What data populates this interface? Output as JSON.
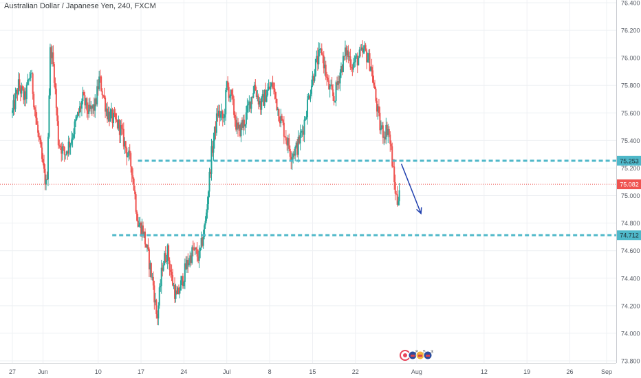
{
  "chart_data": {
    "type": "candlestick",
    "title": "Australian Dollar / Japanese Yen, 240, FXCM",
    "ylim": [
      73.8,
      76.4
    ],
    "y_ticks": [
      "76.400",
      "76.200",
      "76.000",
      "75.800",
      "75.600",
      "75.400",
      "75.200",
      "75.000",
      "74.800",
      "74.600",
      "74.400",
      "74.200",
      "74.000",
      "73.800"
    ],
    "x_ticks": [
      {
        "label": "27",
        "day": 0
      },
      {
        "label": "Jun",
        "day": 5
      },
      {
        "label": "10",
        "day": 14
      },
      {
        "label": "17",
        "day": 21
      },
      {
        "label": "24",
        "day": 28
      },
      {
        "label": "Jul",
        "day": 35
      },
      {
        "label": "8",
        "day": 42
      },
      {
        "label": "15",
        "day": 49
      },
      {
        "label": "22",
        "day": 56
      },
      {
        "label": "Aug",
        "day": 66
      },
      {
        "label": "12",
        "day": 77
      },
      {
        "label": "19",
        "day": 84
      },
      {
        "label": "26",
        "day": 91
      },
      {
        "label": "Sep",
        "day": 97
      }
    ],
    "current_price": {
      "label": "75.082",
      "value": 75.082,
      "color": "#ef5350"
    },
    "levels": [
      {
        "label": "75.253",
        "value": 75.253,
        "from_day": 20.5,
        "color": "#4fb8c9"
      },
      {
        "label": "74.712",
        "value": 74.712,
        "from_day": 16.3,
        "color": "#4fb8c9"
      }
    ],
    "forecast_arrow": {
      "from_day": 63.5,
      "from_value": 75.23,
      "to_day": 66.7,
      "to_value": 74.87,
      "color": "#1f3fae"
    },
    "colors": {
      "up": "#26a69a",
      "down": "#ef5350",
      "grid": "#eef0f3",
      "axis_text": "#555a63"
    },
    "events": [
      {
        "icon": "target-event-icon",
        "count": ""
      },
      {
        "icon": "flag-event-icon",
        "count": "8"
      },
      {
        "icon": "flag-event-icon",
        "count": "5"
      },
      {
        "icon": "flag-event-icon",
        "count": "3"
      }
    ],
    "anchors": [
      {
        "day": 0,
        "value": 75.6
      },
      {
        "day": 1,
        "value": 75.8
      },
      {
        "day": 2,
        "value": 75.7
      },
      {
        "day": 3,
        "value": 75.9
      },
      {
        "day": 4,
        "value": 75.5
      },
      {
        "day": 5,
        "value": 75.2
      },
      {
        "day": 5.6,
        "value": 75.05
      },
      {
        "day": 6.2,
        "value": 76.1
      },
      {
        "day": 6.8,
        "value": 75.9
      },
      {
        "day": 7.5,
        "value": 75.4
      },
      {
        "day": 8.5,
        "value": 75.3
      },
      {
        "day": 9.5,
        "value": 75.4
      },
      {
        "day": 10.5,
        "value": 75.55
      },
      {
        "day": 11.5,
        "value": 75.7
      },
      {
        "day": 12.5,
        "value": 75.6
      },
      {
        "day": 13.5,
        "value": 75.65
      },
      {
        "day": 14.2,
        "value": 75.85
      },
      {
        "day": 15.5,
        "value": 75.6
      },
      {
        "day": 16.5,
        "value": 75.55
      },
      {
        "day": 17.5,
        "value": 75.5
      },
      {
        "day": 18.5,
        "value": 75.35
      },
      {
        "day": 19.5,
        "value": 75.2
      },
      {
        "day": 20.5,
        "value": 74.8
      },
      {
        "day": 21.3,
        "value": 74.75
      },
      {
        "day": 22.2,
        "value": 74.55
      },
      {
        "day": 23.0,
        "value": 74.35
      },
      {
        "day": 23.6,
        "value": 74.1
      },
      {
        "day": 24.5,
        "value": 74.5
      },
      {
        "day": 25.3,
        "value": 74.6
      },
      {
        "day": 26.0,
        "value": 74.4
      },
      {
        "day": 26.8,
        "value": 74.25
      },
      {
        "day": 27.5,
        "value": 74.35
      },
      {
        "day": 28.5,
        "value": 74.5
      },
      {
        "day": 29.5,
        "value": 74.6
      },
      {
        "day": 30.5,
        "value": 74.55
      },
      {
        "day": 31.5,
        "value": 74.8
      },
      {
        "day": 32.5,
        "value": 75.3
      },
      {
        "day": 33.5,
        "value": 75.6
      },
      {
        "day": 34.5,
        "value": 75.55
      },
      {
        "day": 35.0,
        "value": 75.8
      },
      {
        "day": 35.8,
        "value": 75.7
      },
      {
        "day": 36.8,
        "value": 75.45
      },
      {
        "day": 38.0,
        "value": 75.55
      },
      {
        "day": 39.5,
        "value": 75.8
      },
      {
        "day": 40.5,
        "value": 75.65
      },
      {
        "day": 41.5,
        "value": 75.75
      },
      {
        "day": 42.5,
        "value": 75.8
      },
      {
        "day": 43.5,
        "value": 75.6
      },
      {
        "day": 44.5,
        "value": 75.45
      },
      {
        "day": 45.5,
        "value": 75.3
      },
      {
        "day": 46.5,
        "value": 75.35
      },
      {
        "day": 47.5,
        "value": 75.5
      },
      {
        "day": 48.5,
        "value": 75.75
      },
      {
        "day": 49.5,
        "value": 75.95
      },
      {
        "day": 50.5,
        "value": 76.05
      },
      {
        "day": 51.5,
        "value": 75.8
      },
      {
        "day": 52.5,
        "value": 75.7
      },
      {
        "day": 53.5,
        "value": 75.9
      },
      {
        "day": 54.5,
        "value": 76.05
      },
      {
        "day": 55.5,
        "value": 75.95
      },
      {
        "day": 56.5,
        "value": 76.0
      },
      {
        "day": 57.5,
        "value": 76.05
      },
      {
        "day": 58.5,
        "value": 75.95
      },
      {
        "day": 59.3,
        "value": 75.7
      },
      {
        "day": 60.0,
        "value": 75.5
      },
      {
        "day": 60.7,
        "value": 75.45
      },
      {
        "day": 61.3,
        "value": 75.5
      },
      {
        "day": 61.9,
        "value": 75.3
      },
      {
        "day": 62.3,
        "value": 75.1
      },
      {
        "day": 62.8,
        "value": 74.95
      },
      {
        "day": 63.3,
        "value": 75.1
      }
    ]
  }
}
